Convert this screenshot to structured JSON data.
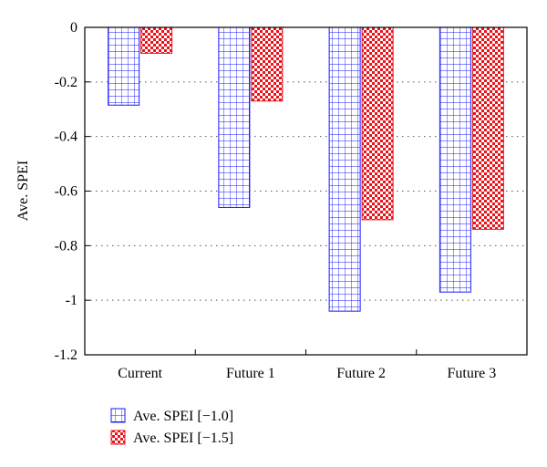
{
  "chart_data": {
    "type": "bar",
    "ylabel": "Ave. SPEI",
    "xlabel": "",
    "ylim": [
      -1.2,
      0
    ],
    "yticks": [
      0,
      -0.2,
      -0.4,
      -0.6,
      -0.8,
      -1,
      -1.2
    ],
    "ytick_labels": [
      "0",
      "-0.2",
      "-0.4",
      "-0.6",
      "-0.8",
      "-1",
      "-1.2"
    ],
    "grid": "horizontal dotted",
    "legend_position": "bottom-left",
    "categories": [
      "Current",
      "Future 1",
      "Future 2",
      "Future 3"
    ],
    "series": [
      {
        "name": "Ave. SPEI [−1.0]",
        "values": [
          -0.285,
          -0.66,
          -1.04,
          -0.97
        ],
        "color": "#1a1aff",
        "pattern": "grid"
      },
      {
        "name": "Ave. SPEI [−1.5]",
        "values": [
          -0.095,
          -0.27,
          -0.705,
          -0.74
        ],
        "color": "#e8141c",
        "pattern": "checker"
      }
    ]
  }
}
